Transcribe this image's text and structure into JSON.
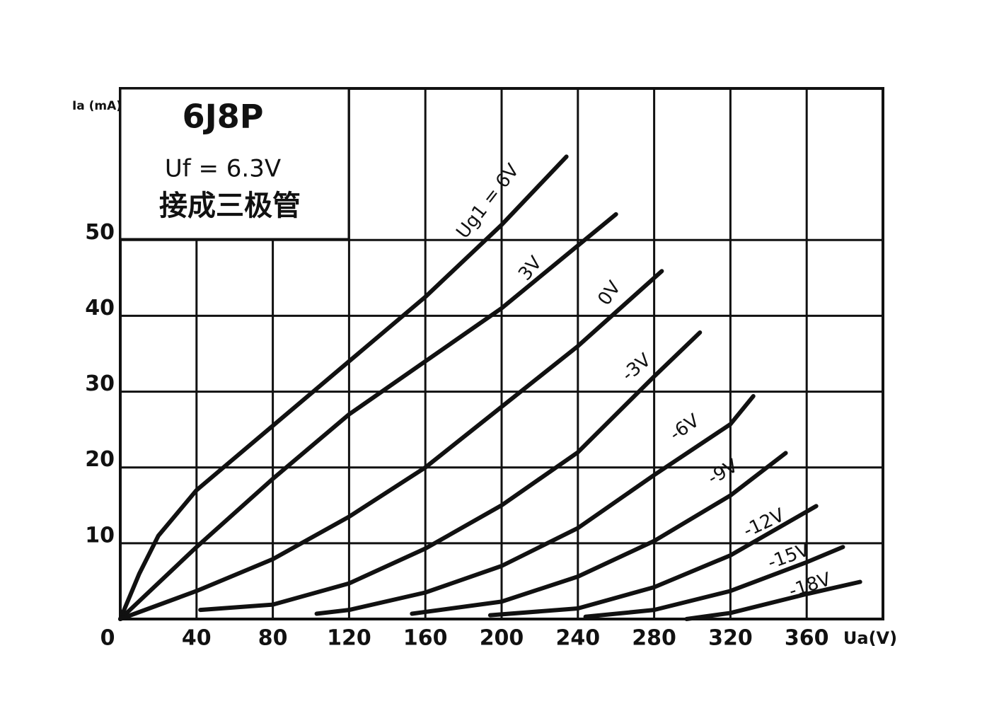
{
  "chart_data": {
    "type": "line",
    "title": "6J8P",
    "subtitle": "Uf = 6.3V",
    "annotation": "接成三极管",
    "y_label": "Ia (mA)",
    "x_label": "Ua(V)",
    "xlim": [
      0,
      400
    ],
    "xticks": [
      0,
      40,
      80,
      120,
      160,
      200,
      240,
      280,
      320,
      360
    ],
    "ylim": [
      0,
      70
    ],
    "yticks": [
      10,
      20,
      30,
      40,
      50
    ],
    "grid": true,
    "series": [
      {
        "name": "Ug1 = 6V",
        "color": "#111111",
        "x": [
          0,
          10,
          20,
          40,
          80,
          120,
          160,
          200,
          234
        ],
        "values": [
          0,
          6,
          11,
          17,
          25.5,
          34,
          42.5,
          52,
          61
        ]
      },
      {
        "name": "3V",
        "color": "#111111",
        "x": [
          0,
          40,
          80,
          120,
          160,
          200,
          260
        ],
        "values": [
          0,
          9.5,
          18.5,
          27,
          34,
          41,
          53.4
        ]
      },
      {
        "name": "0V",
        "color": "#111111",
        "x": [
          0,
          40,
          80,
          120,
          160,
          200,
          240,
          284
        ],
        "values": [
          0,
          3.7,
          7.9,
          13.5,
          20,
          28,
          36,
          45.9
        ]
      },
      {
        "name": "-3V",
        "color": "#111111",
        "x": [
          42,
          80,
          120,
          160,
          200,
          240,
          280,
          304
        ],
        "values": [
          1.2,
          1.9,
          4.7,
          9.3,
          15,
          22,
          32,
          37.8
        ]
      },
      {
        "name": "-6V",
        "color": "#111111",
        "x": [
          103,
          120,
          160,
          200,
          240,
          280,
          320,
          332
        ],
        "values": [
          0.7,
          1.2,
          3.5,
          7,
          12,
          19,
          25.7,
          29.4
        ]
      },
      {
        "name": "-9V",
        "color": "#111111",
        "x": [
          153,
          200,
          240,
          280,
          320,
          349
        ],
        "values": [
          0.7,
          2.3,
          5.6,
          10.3,
          16.3,
          21.9
        ]
      },
      {
        "name": "-12V",
        "color": "#111111",
        "x": [
          194,
          240,
          280,
          320,
          365
        ],
        "values": [
          0.5,
          1.4,
          4.2,
          8.4,
          14.9
        ]
      },
      {
        "name": "-15V",
        "color": "#111111",
        "x": [
          244,
          280,
          320,
          360,
          379
        ],
        "values": [
          0.3,
          1.2,
          3.7,
          7.5,
          9.5
        ]
      },
      {
        "name": "-18V",
        "color": "#111111",
        "x": [
          297,
          320,
          360,
          388
        ],
        "values": [
          0,
          0.8,
          3.3,
          4.9
        ]
      }
    ]
  }
}
